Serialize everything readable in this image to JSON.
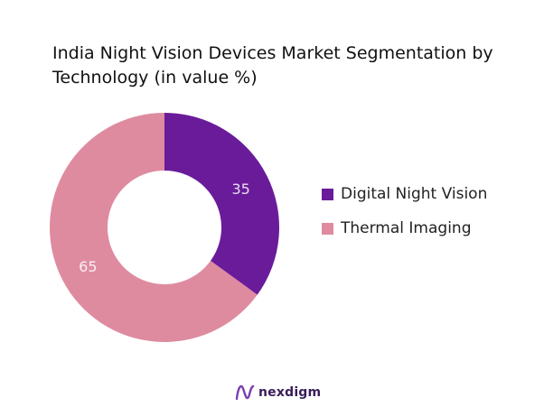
{
  "chart_data": {
    "type": "pie",
    "title": "India Night Vision Devices Market Segmentation by Technology (in value %)",
    "categories": [
      "Digital Night Vision",
      "Thermal Imaging"
    ],
    "values": [
      35,
      65
    ],
    "data_labels": [
      "35",
      "65"
    ],
    "colors": [
      "#6a1b9a",
      "#de8ba0"
    ],
    "donut": true,
    "legend_position": "right"
  },
  "brand": {
    "name": "nexdigm",
    "logo_icon": "nexdigm-logo-icon"
  }
}
